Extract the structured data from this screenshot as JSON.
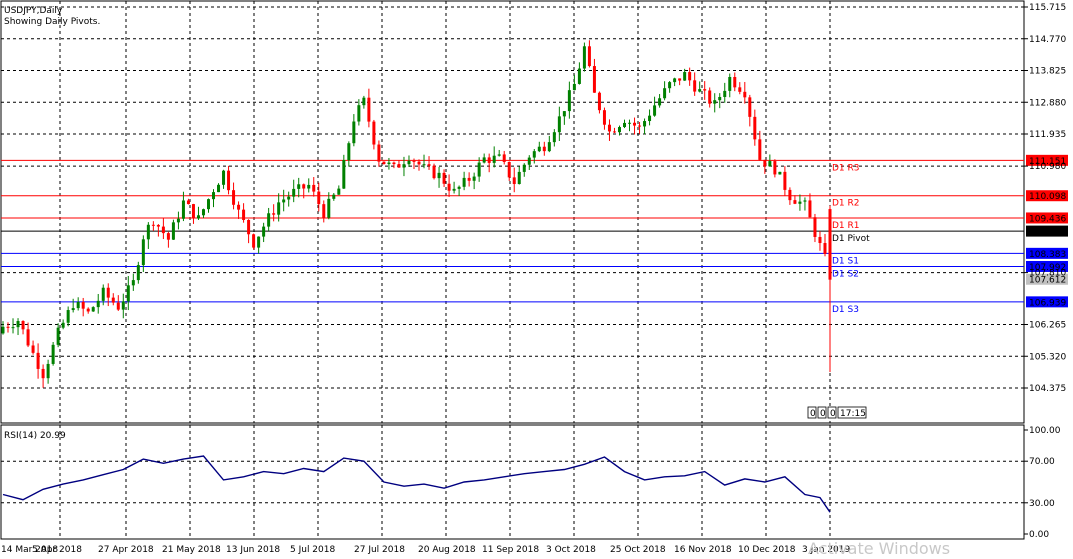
{
  "header": {
    "symbol_line": "USDJPY,Daily",
    "indicator_line": "Showing Daily Pivots."
  },
  "rsi": {
    "label": "RSI(14) 20.99",
    "ticks": [
      "100.00",
      "70.00",
      "30.00",
      "0.00"
    ]
  },
  "badges": [
    "0",
    "0",
    "0",
    "17:15"
  ],
  "watermark": "Activate Windows",
  "colors": {
    "bull": "#008000",
    "bear": "#ff0000",
    "resistance": "#ff0000",
    "support": "#0000ff",
    "pivot": "#000000",
    "rsi_line": "#000080",
    "grid": "#000000"
  },
  "chart_data": [
    {
      "type": "candlestick",
      "title": "USDJPY,Daily",
      "subtitle": "Showing Daily Pivots.",
      "ylim": [
        103.7,
        115.9
      ],
      "y_ticks": [
        115.715,
        114.77,
        113.825,
        112.88,
        111.935,
        110.98,
        107.81,
        106.265,
        105.32,
        104.375
      ],
      "x_ticks": [
        "14 Mar 2018",
        "5 Apr 2018",
        "27 Apr 2018",
        "21 May 2018",
        "13 Jun 2018",
        "5 Jul 2018",
        "27 Jul 2018",
        "20 Aug 2018",
        "11 Sep 2018",
        "3 Oct 2018",
        "25 Oct 2018",
        "16 Nov 2018",
        "10 Dec 2018",
        "3 Jan 2019"
      ],
      "grid": true,
      "current_price": 107.612,
      "pivot_levels": [
        {
          "name": "D1 R3",
          "value": 111.151
        },
        {
          "name": "D1 R2",
          "value": 110.098
        },
        {
          "name": "D1 R1",
          "value": 109.436
        },
        {
          "name": "D1 Pivot",
          "value": 109.045
        },
        {
          "name": "D1 S1",
          "value": 108.383
        },
        {
          "name": "D1 S2",
          "value": 107.992
        },
        {
          "name": "D1 S3",
          "value": 106.939
        }
      ],
      "close_path": [
        [
          0,
          106.2
        ],
        [
          3,
          106.4
        ],
        [
          6,
          105.4
        ],
        [
          8,
          104.8
        ],
        [
          11,
          106.0
        ],
        [
          14,
          106.9
        ],
        [
          17,
          106.6
        ],
        [
          20,
          107.2
        ],
        [
          23,
          106.8
        ],
        [
          26,
          107.5
        ],
        [
          28,
          108.9
        ],
        [
          30,
          109.4
        ],
        [
          33,
          108.8
        ],
        [
          36,
          109.9
        ],
        [
          39,
          109.4
        ],
        [
          42,
          110.3
        ],
        [
          44,
          110.8
        ],
        [
          47,
          109.6
        ],
        [
          50,
          108.7
        ],
        [
          52,
          109.2
        ],
        [
          55,
          109.9
        ],
        [
          58,
          110.2
        ],
        [
          61,
          110.4
        ],
        [
          64,
          109.6
        ],
        [
          67,
          110.3
        ],
        [
          70,
          112.4
        ],
        [
          72,
          112.9
        ],
        [
          75,
          111.2
        ],
        [
          78,
          110.9
        ],
        [
          81,
          111.3
        ],
        [
          84,
          110.9
        ],
        [
          87,
          110.7
        ],
        [
          90,
          110.2
        ],
        [
          93,
          110.6
        ],
        [
          96,
          111.2
        ],
        [
          99,
          111.2
        ],
        [
          102,
          110.5
        ],
        [
          105,
          111.3
        ],
        [
          108,
          111.6
        ],
        [
          111,
          112.4
        ],
        [
          114,
          113.4
        ],
        [
          116,
          114.5
        ],
        [
          118,
          113.1
        ],
        [
          121,
          112.0
        ],
        [
          124,
          112.4
        ],
        [
          127,
          112.1
        ],
        [
          130,
          112.8
        ],
        [
          133,
          113.4
        ],
        [
          136,
          113.7
        ],
        [
          139,
          113.2
        ],
        [
          142,
          112.8
        ],
        [
          145,
          113.6
        ],
        [
          148,
          113.2
        ],
        [
          151,
          111.2
        ],
        [
          154,
          110.9
        ],
        [
          157,
          110.1
        ],
        [
          160,
          109.8
        ],
        [
          162,
          109.0
        ],
        [
          164,
          108.2
        ],
        [
          165,
          107.9
        ]
      ],
      "last_candle": {
        "open": 109.7,
        "high": 109.8,
        "low": 104.85,
        "close": 107.6
      }
    },
    {
      "type": "line",
      "title": "RSI(14) 20.99",
      "name": "RSI(14)",
      "ylim": [
        0,
        100
      ],
      "y_ticks": [
        100,
        70,
        30,
        0
      ],
      "levels": [
        70,
        30
      ],
      "last_value": 20.99,
      "x": [
        0,
        4,
        8,
        12,
        16,
        20,
        24,
        28,
        32,
        36,
        40,
        44,
        48,
        52,
        56,
        60,
        64,
        68,
        72,
        76,
        80,
        84,
        88,
        92,
        96,
        100,
        104,
        108,
        112,
        116,
        120,
        124,
        128,
        132,
        136,
        140,
        144,
        148,
        152,
        156,
        160,
        163,
        165
      ],
      "values": [
        38,
        33,
        43,
        48,
        52,
        57,
        62,
        72,
        68,
        72,
        75,
        52,
        55,
        60,
        58,
        63,
        60,
        73,
        70,
        50,
        46,
        48,
        44,
        50,
        52,
        55,
        58,
        60,
        62,
        67,
        74,
        60,
        52,
        55,
        56,
        60,
        47,
        53,
        50,
        55,
        38,
        35,
        20.99
      ]
    }
  ]
}
